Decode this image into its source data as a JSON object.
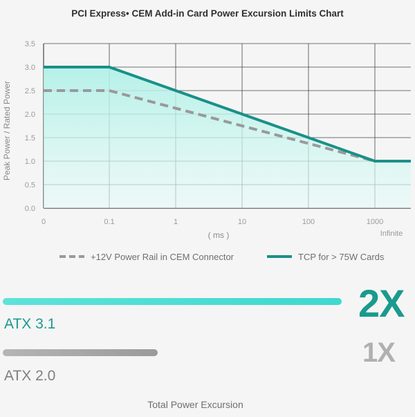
{
  "chart_data": [
    {
      "type": "line",
      "title": "PCI Express• CEM Add-in Card Power Excursion Limits Chart",
      "xlabel": "( ms )",
      "ylabel": "Peak Power / Rated Power",
      "x_scale": "log",
      "x_ticks": [
        "0",
        "0.1",
        "1",
        "10",
        "100",
        "1000",
        "Infinite"
      ],
      "y_ticks": [
        "0.0",
        "0.5",
        "1.0",
        "1.5",
        "2.0",
        "2.5",
        "3.0",
        "3.5"
      ],
      "ylim": [
        0,
        3.5
      ],
      "grid": true,
      "legend_position": "bottom",
      "series": [
        {
          "name": "+12V Power Rail in CEM Connector",
          "style": "dashed",
          "color": "#999999",
          "x": [
            "0",
            "0.1",
            "1000"
          ],
          "values": [
            2.5,
            2.5,
            1.0
          ]
        },
        {
          "name": "TCP for > 75W Cards",
          "style": "solid",
          "color": "#1a9088",
          "fill": "#aef0e6",
          "x": [
            "0",
            "0.1",
            "1000",
            "Infinite"
          ],
          "values": [
            3.0,
            3.0,
            1.0,
            1.0
          ]
        }
      ]
    },
    {
      "type": "bar",
      "title": "Total Power Excursion",
      "orientation": "horizontal",
      "categories": [
        "ATX 3.1",
        "ATX 2.0"
      ],
      "values": [
        2,
        1
      ],
      "value_labels": [
        "2X",
        "1X"
      ],
      "colors": [
        "#3fd8cf",
        "#a8a8a8"
      ]
    }
  ]
}
